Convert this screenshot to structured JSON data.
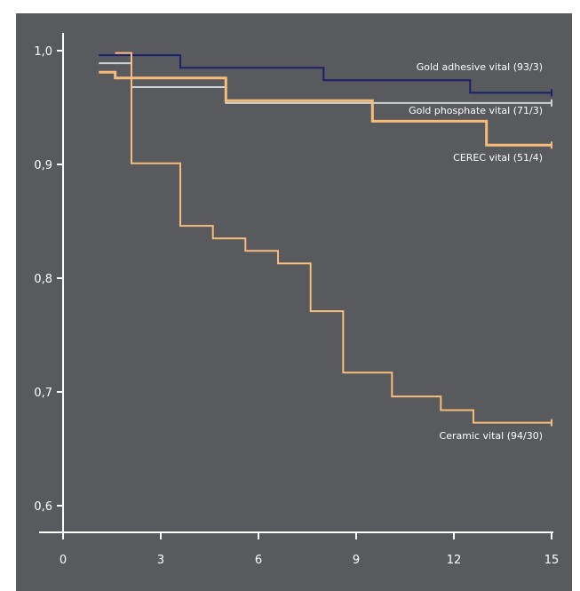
{
  "colors": {
    "background": "#585a5d",
    "axis": "#ffffff",
    "navy": "#1a1f6e",
    "silver": "#cfd2d5",
    "orange": "#f7bc79"
  },
  "chart_data": {
    "type": "line",
    "title": "",
    "xlabel": "",
    "ylabel": "",
    "xlim": [
      0,
      15
    ],
    "ylim": [
      0.6,
      1.0
    ],
    "x_ticks": [
      0,
      3,
      6,
      9,
      12,
      15
    ],
    "x_tick_labels": [
      "0",
      "3",
      "6",
      "9",
      "12",
      "15"
    ],
    "y_ticks": [
      0.6,
      0.7,
      0.8,
      0.9,
      1.0
    ],
    "y_tick_labels": [
      "0,6",
      "0,7",
      "0,8",
      "0,9",
      "1,0"
    ],
    "grid": false,
    "series": [
      {
        "name": "Gold adhesive vital (93/3)",
        "color": "navy",
        "width": 2,
        "points": [
          [
            1.1,
            0.996
          ],
          [
            3.6,
            0.996
          ],
          [
            3.6,
            0.985
          ],
          [
            8.0,
            0.985
          ],
          [
            8.0,
            0.974
          ],
          [
            12.5,
            0.974
          ],
          [
            12.5,
            0.963
          ],
          [
            15.0,
            0.963
          ]
        ]
      },
      {
        "name": "Gold phosphate vital (71/3)",
        "color": "silver",
        "width": 2,
        "points": [
          [
            1.1,
            0.989
          ],
          [
            2.1,
            0.989
          ],
          [
            2.1,
            0.968
          ],
          [
            5.0,
            0.968
          ],
          [
            5.0,
            0.954
          ],
          [
            15.0,
            0.954
          ]
        ]
      },
      {
        "name": "CEREC vital (51/4)",
        "color": "orange",
        "width": 3,
        "points": [
          [
            1.1,
            0.981
          ],
          [
            1.6,
            0.981
          ],
          [
            1.6,
            0.976
          ],
          [
            5.0,
            0.976
          ],
          [
            5.0,
            0.956
          ],
          [
            9.5,
            0.956
          ],
          [
            9.5,
            0.938
          ],
          [
            13.0,
            0.938
          ],
          [
            13.0,
            0.917
          ],
          [
            15.0,
            0.917
          ]
        ]
      },
      {
        "name": "Ceramic vital (94/30)",
        "color": "orange",
        "width": 2,
        "points": [
          [
            1.6,
            0.998
          ],
          [
            2.1,
            0.998
          ],
          [
            2.1,
            0.901
          ],
          [
            3.6,
            0.901
          ],
          [
            3.6,
            0.846
          ],
          [
            4.6,
            0.846
          ],
          [
            4.6,
            0.835
          ],
          [
            5.6,
            0.835
          ],
          [
            5.6,
            0.824
          ],
          [
            6.6,
            0.824
          ],
          [
            6.6,
            0.813
          ],
          [
            7.6,
            0.813
          ],
          [
            7.6,
            0.771
          ],
          [
            8.6,
            0.771
          ],
          [
            8.6,
            0.717
          ],
          [
            10.1,
            0.717
          ],
          [
            10.1,
            0.696
          ],
          [
            11.6,
            0.696
          ],
          [
            11.6,
            0.684
          ],
          [
            12.6,
            0.684
          ],
          [
            12.6,
            0.673
          ],
          [
            15.0,
            0.673
          ]
        ]
      }
    ]
  }
}
